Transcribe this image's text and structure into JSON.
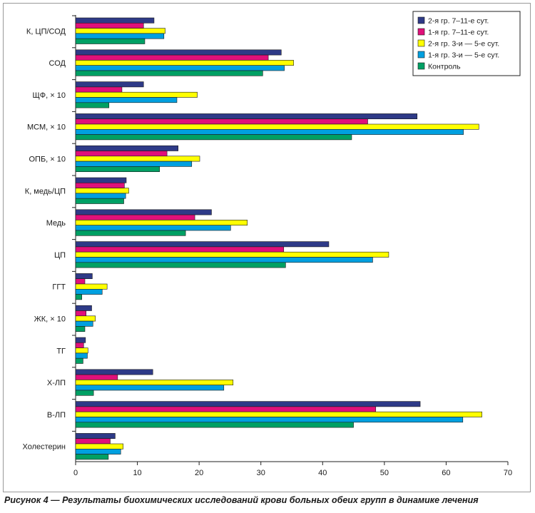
{
  "caption": "Рисунок 4 — Результаты биохимических исследований крови больных обеих групп в динамике лечения",
  "chart_data": {
    "type": "bar",
    "orientation": "horizontal",
    "categories": [
      "К, ЦП/СОД",
      "СОД",
      "ЩФ, × 10",
      "МСМ, × 10",
      "ОПБ, × 10",
      "К, медь/ЦП",
      "Медь",
      "ЦП",
      "ГГТ",
      "ЖК, × 10",
      "ТГ",
      "Х-ЛП",
      "В-ЛП",
      "Холестерин"
    ],
    "series": [
      {
        "name": "2-я гр. 7–11-е сут.",
        "color": "#2e3a87",
        "values": [
          12.7,
          33.3,
          11.0,
          55.3,
          16.6,
          8.2,
          22.0,
          41.0,
          2.7,
          2.6,
          1.6,
          12.5,
          55.8,
          6.4
        ]
      },
      {
        "name": "1-я гр. 7–11-е сут.",
        "color": "#e0107a",
        "values": [
          11.0,
          31.2,
          7.5,
          47.3,
          14.8,
          7.9,
          19.3,
          33.7,
          1.5,
          1.7,
          1.3,
          6.8,
          48.6,
          5.6
        ]
      },
      {
        "name": "2-я гр. 3-и — 5-е сут.",
        "color": "#ffff00",
        "values": [
          14.5,
          35.3,
          19.7,
          65.3,
          20.1,
          8.6,
          27.8,
          50.7,
          5.1,
          3.2,
          2.0,
          25.5,
          65.8,
          7.7
        ]
      },
      {
        "name": "1-я гр. 3-и — 5-е сут.",
        "color": "#00a0e0",
        "values": [
          14.3,
          33.8,
          16.4,
          62.8,
          18.8,
          8.1,
          25.1,
          48.1,
          4.3,
          2.8,
          1.9,
          24.0,
          62.7,
          7.3
        ]
      },
      {
        "name": "Контроль",
        "color": "#00a064",
        "values": [
          11.2,
          30.3,
          5.4,
          44.7,
          13.6,
          7.8,
          17.8,
          34.0,
          1.0,
          1.5,
          1.2,
          2.9,
          45.0,
          5.3
        ]
      }
    ],
    "xlim": [
      0,
      70
    ],
    "xticks": [
      0,
      10,
      20,
      30,
      40,
      50,
      60,
      70
    ],
    "legend_position": "top-right"
  }
}
